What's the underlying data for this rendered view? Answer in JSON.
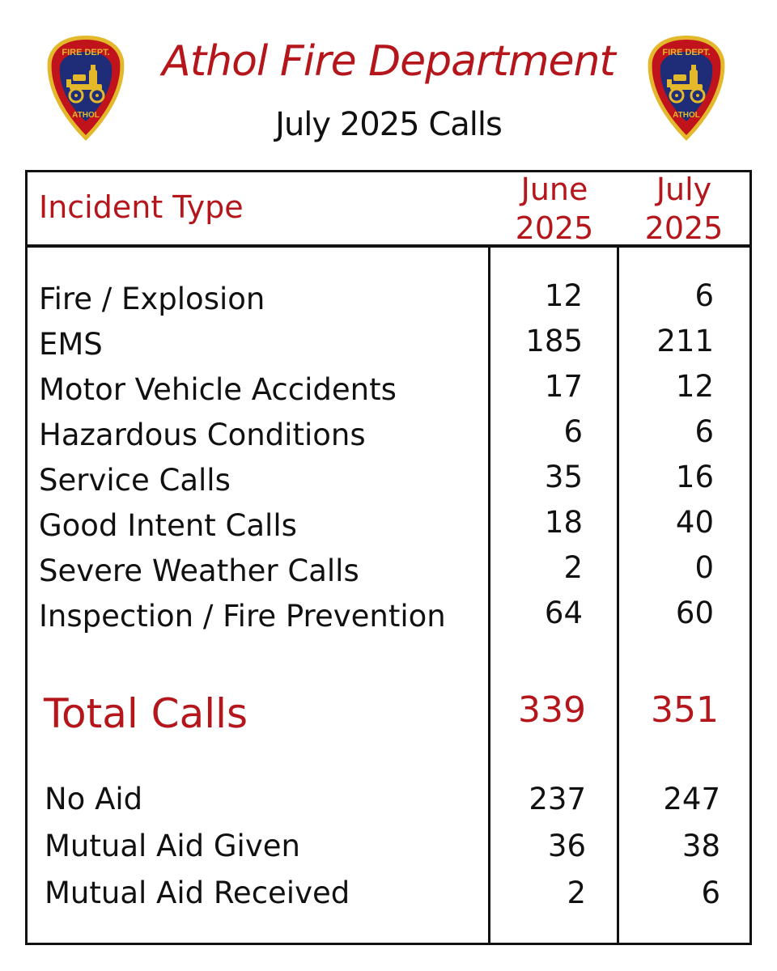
{
  "header": {
    "title": "Athol Fire Department",
    "subtitle": "July 2025 Calls",
    "badge": {
      "top_text": "FIRE DEPT.",
      "bottom_text": "ATHOL",
      "icon": "fire-engine-icon"
    }
  },
  "colors": {
    "accent_red": "#b5161b",
    "text": "#111111",
    "badge_navy": "#1f2c78",
    "badge_red": "#c0131c",
    "badge_gold": "#e3b92b"
  },
  "table": {
    "column_headers": {
      "incident_type": "Incident Type",
      "june_line1": "June",
      "june_line2": "2025",
      "july_line1": "July",
      "july_line2": "2025"
    },
    "incidents": [
      {
        "type": "Fire / Explosion",
        "june": "12",
        "july": "6"
      },
      {
        "type": "EMS",
        "june": "185",
        "july": "211"
      },
      {
        "type": "Motor Vehicle Accidents",
        "june": "17",
        "july": "12"
      },
      {
        "type": "Hazardous Conditions",
        "june": "6",
        "july": "6"
      },
      {
        "type": "Service Calls",
        "june": "35",
        "july": "16"
      },
      {
        "type": "Good Intent Calls",
        "june": "18",
        "july": "40"
      },
      {
        "type": "Severe Weather Calls",
        "june": "2",
        "july": "0"
      },
      {
        "type": "Inspection / Fire Prevention",
        "june": "64",
        "july": "60"
      }
    ],
    "total": {
      "label": "Total Calls",
      "june": "339",
      "july": "351"
    },
    "aid": [
      {
        "type": "No Aid",
        "june": "237",
        "july": "247"
      },
      {
        "type": "Mutual Aid Given",
        "june": "36",
        "july": "38"
      },
      {
        "type": "Mutual Aid Received",
        "june": "2",
        "july": "6"
      }
    ]
  }
}
